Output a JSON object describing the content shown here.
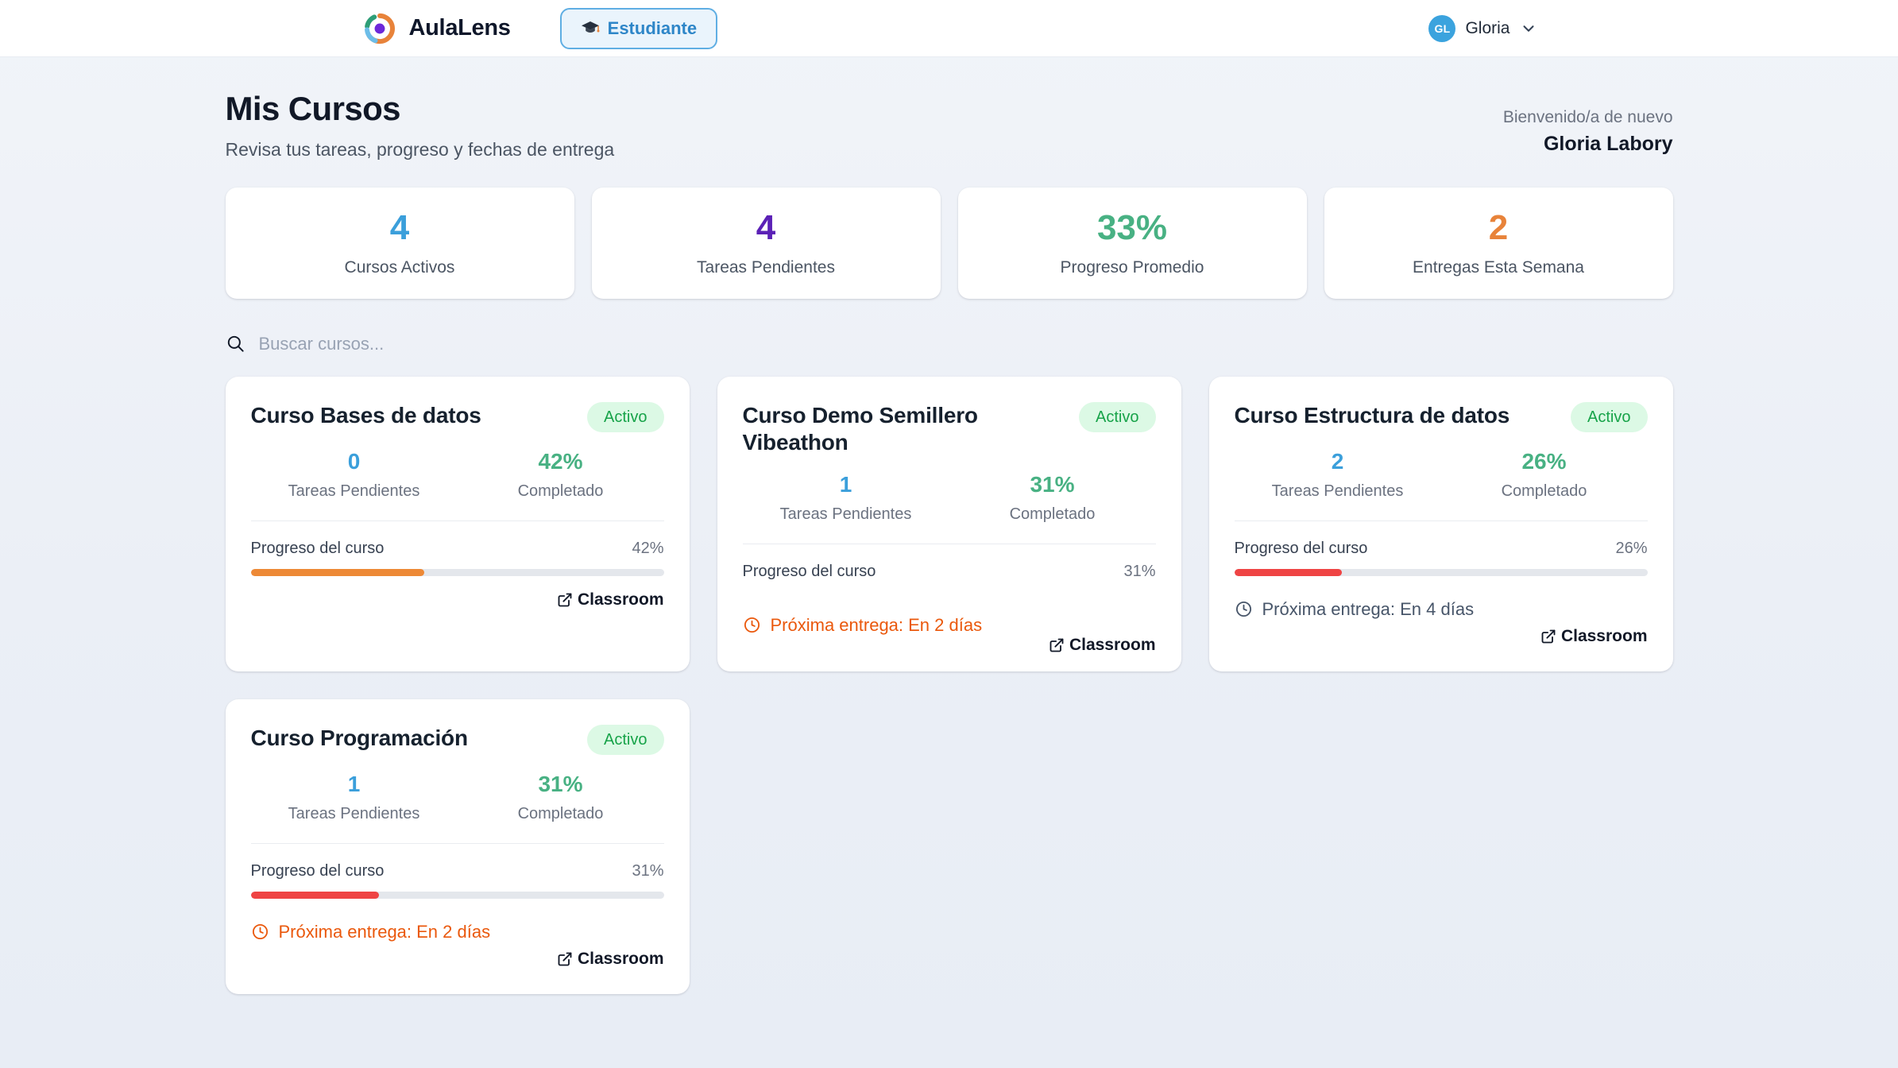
{
  "header": {
    "app_name": "AulaLens",
    "role_badge": "Estudiante",
    "user": {
      "initials": "GL",
      "name": "Gloria"
    }
  },
  "page": {
    "title": "Mis Cursos",
    "subtitle": "Revisa tus tareas, progreso y fechas de entrega",
    "welcome_label": "Bienvenido/a de nuevo",
    "welcome_name": "Gloria Labory"
  },
  "stats": [
    {
      "value": "4",
      "label": "Cursos Activos",
      "color": "#3B9FDB"
    },
    {
      "value": "4",
      "label": "Tareas Pendientes",
      "color": "#5B21B6"
    },
    {
      "value": "33%",
      "label": "Progreso Promedio",
      "color": "#48B183"
    },
    {
      "value": "2",
      "label": "Entregas Esta Semana",
      "color": "#E8833A"
    }
  ],
  "search": {
    "placeholder": "Buscar cursos..."
  },
  "labels": {
    "pending": "Tareas Pendientes",
    "completed": "Completado",
    "progress": "Progreso del curso",
    "classroom": "Classroom"
  },
  "courses": [
    {
      "title": "Curso Bases de datos",
      "status": "Activo",
      "pending": "0",
      "completed": "42%",
      "progress_pct": 42,
      "progress_text": "42%",
      "bar_color": "#ED8936",
      "deadline": null,
      "deadline_urgent": false
    },
    {
      "title": "Curso Demo Semillero Vibeathon",
      "status": "Activo",
      "pending": "1",
      "completed": "31%",
      "progress_pct": 31,
      "progress_text": "31%",
      "bar_color": "#EF4444",
      "deadline": "Próxima entrega: En 2 días",
      "deadline_urgent": true
    },
    {
      "title": "Curso Estructura de datos",
      "status": "Activo",
      "pending": "2",
      "completed": "26%",
      "progress_pct": 26,
      "progress_text": "26%",
      "bar_color": "#EF4444",
      "deadline": "Próxima entrega: En 4 días",
      "deadline_urgent": false
    },
    {
      "title": "Curso Programación",
      "status": "Activo",
      "pending": "1",
      "completed": "31%",
      "progress_pct": 31,
      "progress_text": "31%",
      "bar_color": "#EF4444",
      "deadline": "Próxima entrega: En 2 días",
      "deadline_urgent": true
    }
  ],
  "colors": {
    "accent_blue": "#3B9FDB",
    "accent_green": "#48B183",
    "badge_bg": "#DCF9E5",
    "badge_text": "#17A349",
    "urgent_orange": "#EA580C",
    "bar_track": "#E4E7EC"
  }
}
